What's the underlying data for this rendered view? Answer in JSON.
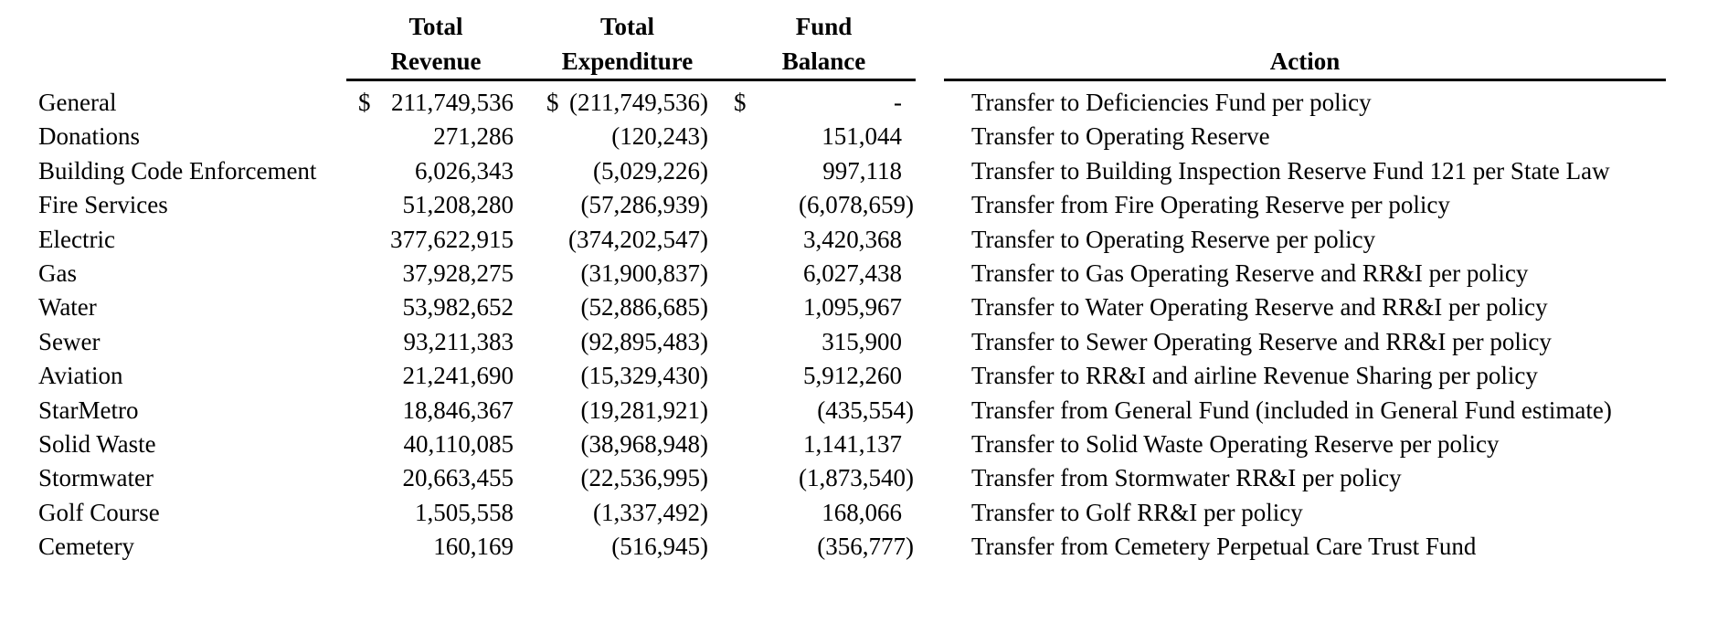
{
  "page": {
    "background_color": "#ffffff",
    "text_color": "#000000"
  },
  "table": {
    "headers": {
      "revenue_line1": "Total",
      "revenue_line2": "Revenue",
      "expenditure_line1": "Total",
      "expenditure_line2": "Expenditure",
      "balance_line1": "Fund",
      "balance_line2": "Balance",
      "action": "Action"
    },
    "rows": [
      {
        "fund": "General",
        "revenue_currency": "$",
        "revenue": "211,749,536",
        "expenditure_currency": "$",
        "expenditure": "(211,749,536)",
        "balance_currency": "$",
        "balance": "-",
        "action": "Transfer to Deficiencies Fund per policy"
      },
      {
        "fund": "Donations",
        "revenue_currency": "",
        "revenue": "271,286",
        "expenditure_currency": "",
        "expenditure": "(120,243)",
        "balance_currency": "",
        "balance": "151,044",
        "action": "Transfer to Operating Reserve"
      },
      {
        "fund": "Building Code Enforcement",
        "revenue_currency": "",
        "revenue": "6,026,343",
        "expenditure_currency": "",
        "expenditure": "(5,029,226)",
        "balance_currency": "",
        "balance": "997,118",
        "action": "Transfer to Building Inspection Reserve Fund 121 per State Law"
      },
      {
        "fund": "Fire Services",
        "revenue_currency": "",
        "revenue": "51,208,280",
        "expenditure_currency": "",
        "expenditure": "(57,286,939)",
        "balance_currency": "",
        "balance": "(6,078,659)",
        "action": "Transfer from Fire Operating Reserve per policy"
      },
      {
        "fund": "Electric",
        "revenue_currency": "",
        "revenue": "377,622,915",
        "expenditure_currency": "",
        "expenditure": "(374,202,547)",
        "balance_currency": "",
        "balance": "3,420,368",
        "action": "Transfer to Operating Reserve per policy"
      },
      {
        "fund": "Gas",
        "revenue_currency": "",
        "revenue": "37,928,275",
        "expenditure_currency": "",
        "expenditure": "(31,900,837)",
        "balance_currency": "",
        "balance": "6,027,438",
        "action": "Transfer to Gas Operating Reserve and RR&I per policy"
      },
      {
        "fund": "Water",
        "revenue_currency": "",
        "revenue": "53,982,652",
        "expenditure_currency": "",
        "expenditure": "(52,886,685)",
        "balance_currency": "",
        "balance": "1,095,967",
        "action": "Transfer to Water Operating Reserve and RR&I per policy"
      },
      {
        "fund": "Sewer",
        "revenue_currency": "",
        "revenue": "93,211,383",
        "expenditure_currency": "",
        "expenditure": "(92,895,483)",
        "balance_currency": "",
        "balance": "315,900",
        "action": "Transfer to Sewer Operating Reserve and RR&I per policy"
      },
      {
        "fund": "Aviation",
        "revenue_currency": "",
        "revenue": "21,241,690",
        "expenditure_currency": "",
        "expenditure": "(15,329,430)",
        "balance_currency": "",
        "balance": "5,912,260",
        "action": "Transfer to RR&I and airline Revenue Sharing per policy"
      },
      {
        "fund": "StarMetro",
        "revenue_currency": "",
        "revenue": "18,846,367",
        "expenditure_currency": "",
        "expenditure": "(19,281,921)",
        "balance_currency": "",
        "balance": "(435,554)",
        "action": "Transfer from General Fund (included in General Fund estimate)"
      },
      {
        "fund": "Solid Waste",
        "revenue_currency": "",
        "revenue": "40,110,085",
        "expenditure_currency": "",
        "expenditure": "(38,968,948)",
        "balance_currency": "",
        "balance": "1,141,137",
        "action": "Transfer to Solid Waste Operating Reserve per policy"
      },
      {
        "fund": "Stormwater",
        "revenue_currency": "",
        "revenue": "20,663,455",
        "expenditure_currency": "",
        "expenditure": "(22,536,995)",
        "balance_currency": "",
        "balance": "(1,873,540)",
        "action": "Transfer from Stormwater RR&I per policy"
      },
      {
        "fund": "Golf Course",
        "revenue_currency": "",
        "revenue": "1,505,558",
        "expenditure_currency": "",
        "expenditure": "(1,337,492)",
        "balance_currency": "",
        "balance": "168,066",
        "action": "Transfer to Golf RR&I per policy"
      },
      {
        "fund": "Cemetery",
        "revenue_currency": "",
        "revenue": "160,169",
        "expenditure_currency": "",
        "expenditure": "(516,945)",
        "balance_currency": "",
        "balance": "(356,777)",
        "action": "Transfer from Cemetery Perpetual Care Trust Fund"
      }
    ]
  }
}
